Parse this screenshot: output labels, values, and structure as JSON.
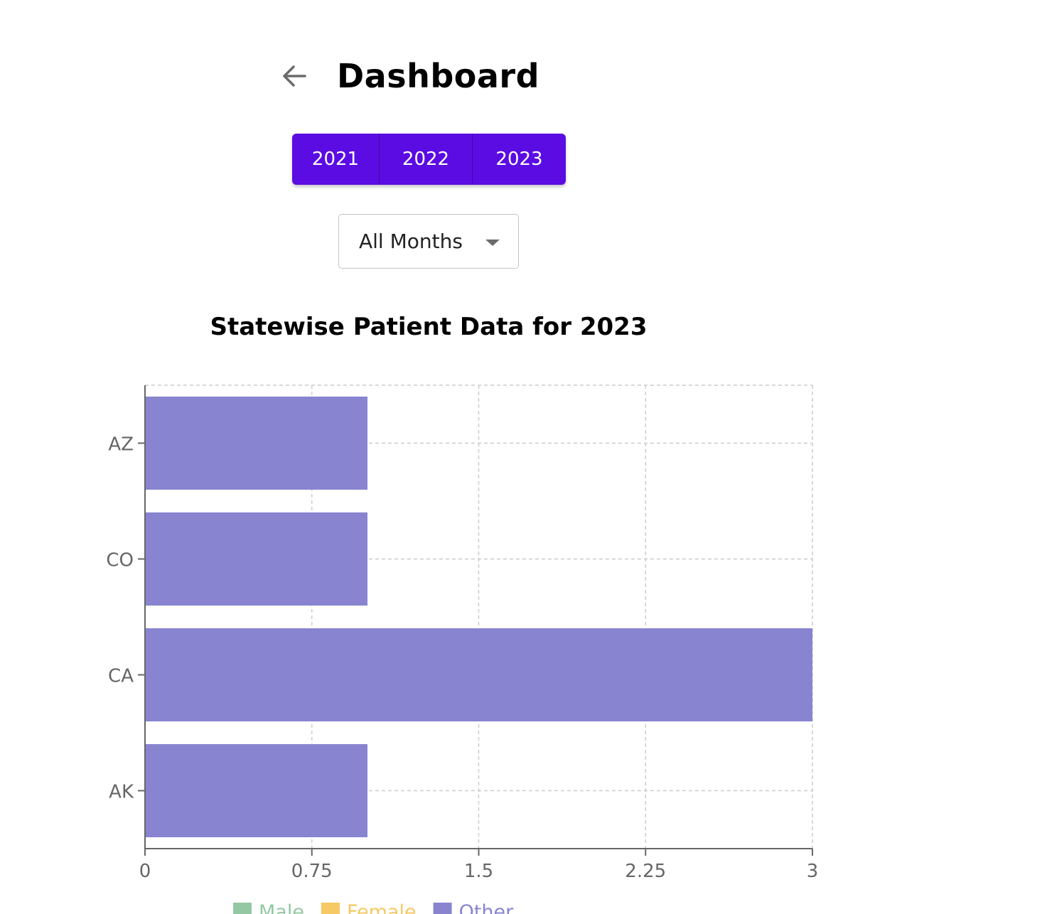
{
  "header": {
    "title": "Dashboard",
    "back_icon": "arrow-left-icon"
  },
  "year_tabs": [
    {
      "label": "2021"
    },
    {
      "label": "2022"
    },
    {
      "label": "2023"
    }
  ],
  "month_filter": {
    "value": "All Months"
  },
  "colors": {
    "accent": "#5b0ce3",
    "male": "#94c8a2",
    "female": "#f6c965",
    "other": "#8884d0",
    "grid": "#cccccc",
    "axis": "#666666"
  },
  "chart_data": {
    "type": "bar",
    "orientation": "horizontal",
    "title": "Statewise Patient Data for 2023",
    "categories": [
      "AZ",
      "CO",
      "CA",
      "AK"
    ],
    "series": [
      {
        "name": "Male",
        "values": [
          0,
          0,
          0,
          0
        ]
      },
      {
        "name": "Female",
        "values": [
          0,
          0,
          0,
          0
        ]
      },
      {
        "name": "Other",
        "values": [
          1,
          1,
          3,
          1
        ]
      }
    ],
    "xlim": [
      0,
      3
    ],
    "xticks": [
      "0",
      "0.75",
      "1.5",
      "2.25",
      "3"
    ],
    "grid": true,
    "legend_position": "bottom"
  }
}
